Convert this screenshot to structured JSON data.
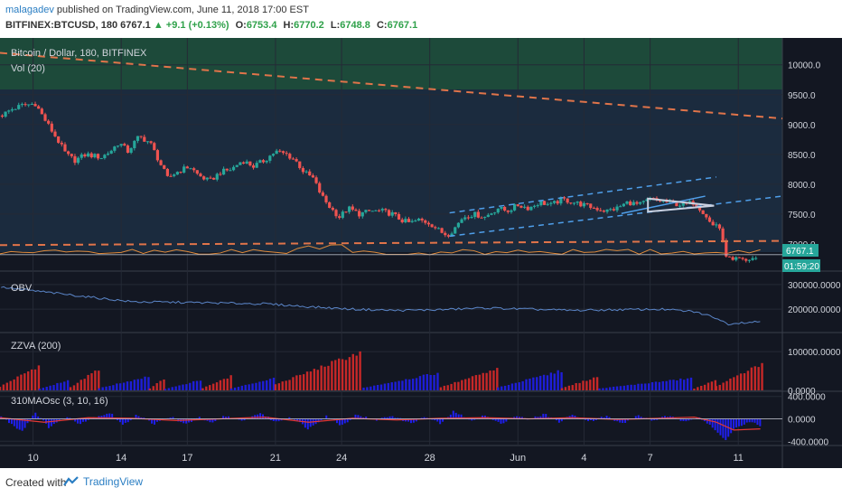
{
  "header": {
    "author": "malagadev",
    "published": "published on TradingView.com, June 11, 2018 17:00 EST",
    "symbol": "BITFINEX:BTCUSD, 180",
    "last": "6767.1",
    "change": "▲ +9.1 (+0.13%)",
    "o_label": "O:",
    "o": "6753.4",
    "h_label": "H:",
    "h": "6770.2",
    "l_label": "L:",
    "l": "6748.8",
    "c_label": "C:",
    "c": "6767.1"
  },
  "footer": {
    "created": "Created with",
    "brand": "TradingView"
  },
  "colors": {
    "bg": "#131722",
    "up": "#26a69a",
    "down": "#ef5350",
    "trend_orange": "#e0744a",
    "channel_blue": "#4f9fea",
    "triangle": "#c8d0e0",
    "obv_line": "#5b86c9",
    "bar_red": "#c62828",
    "bar_blue": "#1e1ed8",
    "osc_blue": "#1f1ff0",
    "osc_red": "#e53935",
    "label_bg": "#26a69a"
  },
  "chart_data": [
    {
      "type": "candlestick",
      "title": "Bitcoin / Dollar, 180, BITFINEX",
      "indicator": "Vol (20)",
      "ylim": [
        6590,
        10450
      ],
      "y_ticks": [
        "10000.0",
        "9500.0",
        "9000.0",
        "8500.0",
        "8000.0",
        "7500.0",
        "7000.0"
      ],
      "last_price_label": "6767.1",
      "countdown_label": "01:59:20",
      "x_ticks": [
        {
          "x": 1.5,
          "label": "10"
        },
        {
          "x": 5.5,
          "label": "14"
        },
        {
          "x": 8.5,
          "label": "17"
        },
        {
          "x": 12.5,
          "label": "21"
        },
        {
          "x": 15.5,
          "label": "24"
        },
        {
          "x": 19.5,
          "label": "28"
        },
        {
          "x": 23.5,
          "label": "Jun"
        },
        {
          "x": 26.5,
          "label": "4"
        },
        {
          "x": 29.5,
          "label": "7"
        },
        {
          "x": 33.5,
          "label": "11"
        }
      ],
      "xlim": [
        0,
        35.5
      ],
      "price_path": [
        [
          0.05,
          9150
        ],
        [
          0.5,
          9250
        ],
        [
          1.0,
          9320
        ],
        [
          1.6,
          9350
        ],
        [
          2.0,
          9100
        ],
        [
          2.6,
          8750
        ],
        [
          3.0,
          8500
        ],
        [
          3.4,
          8400
        ],
        [
          3.9,
          8500
        ],
        [
          4.6,
          8450
        ],
        [
          5.0,
          8550
        ],
        [
          5.4,
          8700
        ],
        [
          5.8,
          8550
        ],
        [
          6.3,
          8800
        ],
        [
          6.8,
          8700
        ],
        [
          7.2,
          8400
        ],
        [
          7.6,
          8100
        ],
        [
          8.0,
          8200
        ],
        [
          8.6,
          8300
        ],
        [
          9.0,
          8150
        ],
        [
          9.5,
          8050
        ],
        [
          10.0,
          8200
        ],
        [
          10.5,
          8250
        ],
        [
          11.0,
          8400
        ],
        [
          11.5,
          8300
        ],
        [
          12.0,
          8400
        ],
        [
          12.5,
          8550
        ],
        [
          13.0,
          8500
        ],
        [
          13.4,
          8400
        ],
        [
          13.8,
          8200
        ],
        [
          14.2,
          8100
        ],
        [
          14.6,
          7800
        ],
        [
          15.0,
          7600
        ],
        [
          15.4,
          7450
        ],
        [
          15.8,
          7600
        ],
        [
          16.3,
          7500
        ],
        [
          16.8,
          7550
        ],
        [
          17.3,
          7550
        ],
        [
          17.8,
          7500
        ],
        [
          18.2,
          7400
        ],
        [
          18.6,
          7350
        ],
        [
          19.0,
          7400
        ],
        [
          19.5,
          7350
        ],
        [
          20.0,
          7200
        ],
        [
          20.3,
          7150
        ],
        [
          20.6,
          7250
        ],
        [
          21.0,
          7450
        ],
        [
          21.5,
          7500
        ],
        [
          22.0,
          7450
        ],
        [
          22.6,
          7600
        ],
        [
          23.0,
          7550
        ],
        [
          23.5,
          7650
        ],
        [
          24.0,
          7600
        ],
        [
          24.5,
          7700
        ],
        [
          25.0,
          7650
        ],
        [
          25.5,
          7750
        ],
        [
          26.0,
          7700
        ],
        [
          26.5,
          7650
        ],
        [
          27.0,
          7600
        ],
        [
          27.5,
          7550
        ],
        [
          28.0,
          7600
        ],
        [
          28.5,
          7700
        ],
        [
          29.0,
          7650
        ],
        [
          29.5,
          7750
        ],
        [
          30.0,
          7720
        ],
        [
          30.5,
          7680
        ],
        [
          31.0,
          7650
        ],
        [
          31.5,
          7700
        ],
        [
          32.0,
          7500
        ],
        [
          32.3,
          7300
        ],
        [
          32.6,
          7350
        ],
        [
          32.9,
          6850
        ],
        [
          33.2,
          6700
        ],
        [
          33.5,
          6750
        ],
        [
          33.8,
          6700
        ],
        [
          34.1,
          6760
        ],
        [
          34.4,
          6767
        ]
      ],
      "trend_lines": [
        {
          "name": "upper-downtrend",
          "x1": 0,
          "y1": 10200,
          "x2": 35.5,
          "y2": 9100
        },
        {
          "name": "lower-support",
          "x1": 0,
          "y1": 6980,
          "x2": 35.5,
          "y2": 7050
        },
        {
          "name": "channel-top",
          "x1": 20.4,
          "y1": 7520,
          "x2": 32.5,
          "y2": 8120
        },
        {
          "name": "channel-bottom",
          "x1": 20.4,
          "y1": 7130,
          "x2": 35.5,
          "y2": 7800
        },
        {
          "name": "channel-mid",
          "x1": 28.2,
          "y1": 7510,
          "x2": 32.0,
          "y2": 7800
        }
      ],
      "triangle": [
        [
          29.4,
          7760
        ],
        [
          32.4,
          7640
        ],
        [
          29.4,
          7540
        ]
      ],
      "horizontal_level": 6820
    },
    {
      "type": "line",
      "title": "OBV",
      "ylim": [
        120000,
        340000
      ],
      "y_ticks": [
        "300000.0000",
        "200000.0000"
      ],
      "values_path": [
        [
          0,
          290000
        ],
        [
          2,
          270000
        ],
        [
          4,
          250000
        ],
        [
          6,
          230000
        ],
        [
          8,
          228000
        ],
        [
          10,
          225000
        ],
        [
          12,
          222000
        ],
        [
          14,
          210000
        ],
        [
          16,
          200000
        ],
        [
          18,
          195000
        ],
        [
          20,
          198000
        ],
        [
          22,
          205000
        ],
        [
          24,
          200000
        ],
        [
          26,
          195000
        ],
        [
          28,
          198000
        ],
        [
          30,
          200000
        ],
        [
          31.5,
          190000
        ],
        [
          32.5,
          165000
        ],
        [
          33,
          140000
        ],
        [
          33.5,
          145000
        ],
        [
          34.5,
          150000
        ]
      ]
    },
    {
      "type": "bar",
      "title": "ZZVA (200)",
      "ylim": [
        0,
        140000
      ],
      "y_ticks": [
        "100000.0000",
        "0.0000"
      ],
      "groups": [
        {
          "start": 0,
          "end": 1.8,
          "color": "red",
          "peak": 70000
        },
        {
          "start": 1.8,
          "end": 3.2,
          "color": "blue",
          "peak": 30000
        },
        {
          "start": 3.2,
          "end": 4.5,
          "color": "red",
          "peak": 60000
        },
        {
          "start": 4.5,
          "end": 6.8,
          "color": "blue",
          "peak": 40000
        },
        {
          "start": 6.8,
          "end": 7.5,
          "color": "red",
          "peak": 35000
        },
        {
          "start": 7.5,
          "end": 9.2,
          "color": "blue",
          "peak": 30000
        },
        {
          "start": 9.2,
          "end": 10.5,
          "color": "red",
          "peak": 40000
        },
        {
          "start": 10.5,
          "end": 12.5,
          "color": "blue",
          "peak": 35000
        },
        {
          "start": 12.5,
          "end": 16.5,
          "color": "red",
          "peak": 110000
        },
        {
          "start": 16.5,
          "end": 20.0,
          "color": "blue",
          "peak": 50000
        },
        {
          "start": 20.0,
          "end": 22.6,
          "color": "red",
          "peak": 60000
        },
        {
          "start": 22.6,
          "end": 25.5,
          "color": "blue",
          "peak": 55000
        },
        {
          "start": 25.5,
          "end": 27.2,
          "color": "red",
          "peak": 40000
        },
        {
          "start": 27.2,
          "end": 31.5,
          "color": "blue",
          "peak": 35000
        },
        {
          "start": 31.5,
          "end": 32.5,
          "color": "red",
          "peak": 30000
        },
        {
          "start": 32.5,
          "end": 34.6,
          "color": "red",
          "peak": 75000
        }
      ]
    },
    {
      "type": "area",
      "title": "310MAOsc (3, 10, 16)",
      "ylim": [
        -460,
        460
      ],
      "y_ticks": [
        "400.0000",
        "0.0000",
        "-400.0000"
      ],
      "osc_path": [
        [
          0,
          50
        ],
        [
          1,
          -220
        ],
        [
          1.6,
          120
        ],
        [
          2.2,
          -150
        ],
        [
          3,
          40
        ],
        [
          3.6,
          -80
        ],
        [
          4.3,
          30
        ],
        [
          5,
          110
        ],
        [
          5.6,
          -120
        ],
        [
          6.2,
          80
        ],
        [
          7,
          -90
        ],
        [
          7.8,
          40
        ],
        [
          8.4,
          -110
        ],
        [
          9,
          30
        ],
        [
          9.6,
          -90
        ],
        [
          10.2,
          60
        ],
        [
          11,
          -50
        ],
        [
          11.8,
          110
        ],
        [
          12.5,
          -60
        ],
        [
          13.2,
          40
        ],
        [
          14,
          -180
        ],
        [
          14.8,
          60
        ],
        [
          15.5,
          -120
        ],
        [
          16.2,
          80
        ],
        [
          17,
          -30
        ],
        [
          17.8,
          60
        ],
        [
          18.6,
          -80
        ],
        [
          19.3,
          40
        ],
        [
          20,
          -90
        ],
        [
          20.6,
          140
        ],
        [
          21.3,
          -30
        ],
        [
          22,
          60
        ],
        [
          22.7,
          -90
        ],
        [
          23.4,
          60
        ],
        [
          24,
          -20
        ],
        [
          24.7,
          90
        ],
        [
          25.4,
          -60
        ],
        [
          26,
          80
        ],
        [
          26.8,
          -40
        ],
        [
          27.5,
          50
        ],
        [
          28.2,
          -90
        ],
        [
          29,
          60
        ],
        [
          29.6,
          -30
        ],
        [
          30.3,
          50
        ],
        [
          31,
          -40
        ],
        [
          31.7,
          40
        ],
        [
          32.3,
          -150
        ],
        [
          32.9,
          -380
        ],
        [
          33.3,
          -180
        ],
        [
          34,
          -60
        ],
        [
          34.5,
          -120
        ]
      ],
      "signal_path": [
        [
          0,
          20
        ],
        [
          2,
          -60
        ],
        [
          4,
          20
        ],
        [
          6,
          10
        ],
        [
          8,
          -30
        ],
        [
          10,
          0
        ],
        [
          12,
          30
        ],
        [
          14,
          -60
        ],
        [
          16,
          10
        ],
        [
          18,
          -20
        ],
        [
          20,
          10
        ],
        [
          22,
          20
        ],
        [
          24,
          0
        ],
        [
          26,
          20
        ],
        [
          28,
          -10
        ],
        [
          30,
          10
        ],
        [
          31.5,
          30
        ],
        [
          32.5,
          -60
        ],
        [
          33.3,
          -200
        ],
        [
          34.5,
          -180
        ]
      ]
    }
  ]
}
